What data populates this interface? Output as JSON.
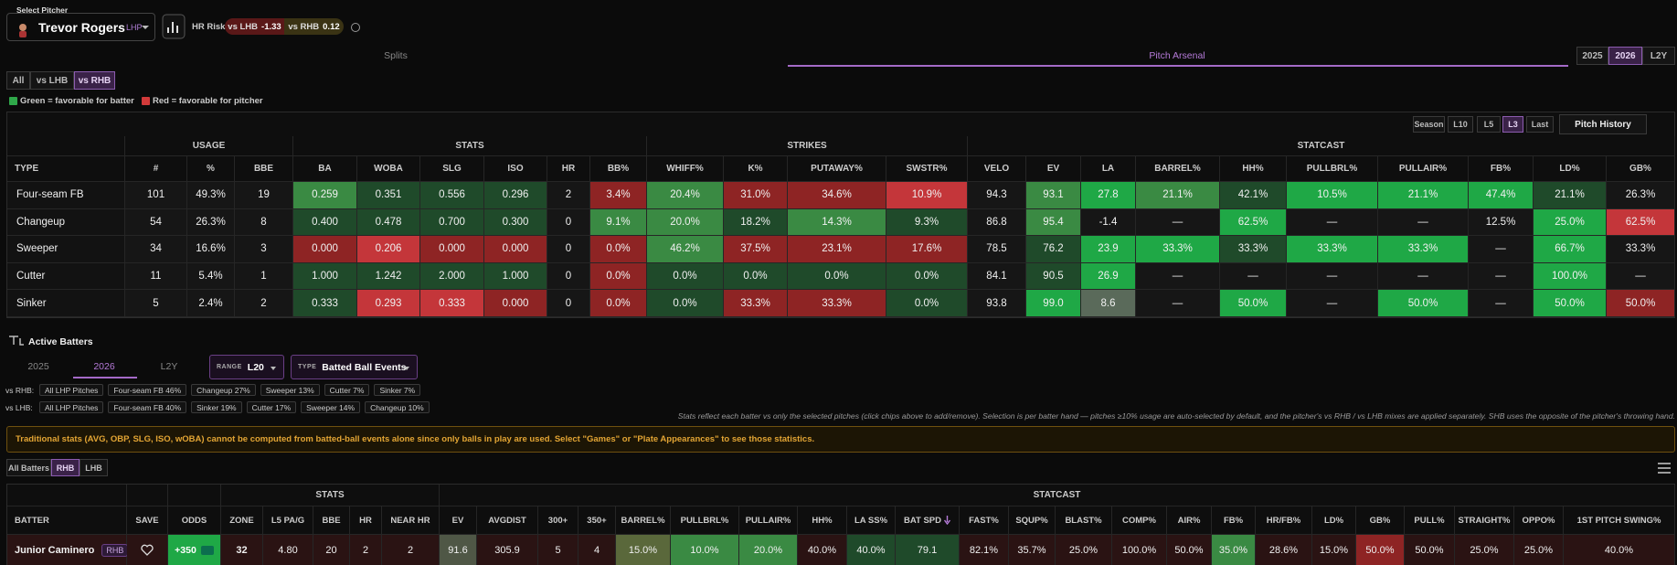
{
  "pitcher_select": {
    "label": "Select Pitcher",
    "name": "Trevor Rogers",
    "hand": "LHP"
  },
  "hr_risk": {
    "label": "HR Risk",
    "vs_lhb": "vs LHB",
    "vs_lhb_value": "-1.33",
    "vs_rhb": "vs RHB",
    "vs_rhb_value": "0.12"
  },
  "main_tabs": [
    "Splits",
    "Pitch Arsenal"
  ],
  "years": [
    "2025",
    "2026",
    "L2Y"
  ],
  "filters": [
    "All",
    "vs LHB",
    "vs RHB"
  ],
  "legend": [
    "Green = favorable for batter",
    "Red = favorable for pitcher"
  ],
  "arsenal": {
    "windows": [
      "Season",
      "L10",
      "L5",
      "L3",
      "Last"
    ],
    "history_button": "Pitch History",
    "groups": [
      "USAGE",
      "STATS",
      "STRIKES",
      "STATCAST"
    ],
    "columns": [
      "TYPE",
      "#",
      "%",
      "BBE",
      "BA",
      "WOBA",
      "SLG",
      "ISO",
      "HR",
      "BB%",
      "WHIFF%",
      "K%",
      "PUTAWAY%",
      "SWSTR%",
      "VELO",
      "EV",
      "LA",
      "BARREL%",
      "HH%",
      "PULLBRL%",
      "PULLAIR%",
      "FB%",
      "LD%",
      "GB%"
    ],
    "rows": [
      [
        "Four-seam FB",
        "101",
        "49.3%",
        "19",
        "0.259",
        "0.351",
        "0.556",
        "0.296",
        "2",
        "3.4%",
        "20.4%",
        "31.0%",
        "34.6%",
        "10.9%",
        "94.3",
        "93.1",
        "27.8",
        "21.1%",
        "42.1%",
        "10.5%",
        "21.1%",
        "47.4%",
        "21.1%",
        "26.3%"
      ],
      [
        "Changeup",
        "54",
        "26.3%",
        "8",
        "0.400",
        "0.478",
        "0.700",
        "0.300",
        "0",
        "9.1%",
        "20.0%",
        "18.2%",
        "14.3%",
        "9.3%",
        "86.8",
        "95.4",
        "-1.4",
        "—",
        "62.5%",
        "—",
        "—",
        "12.5%",
        "25.0%",
        "62.5%"
      ],
      [
        "Sweeper",
        "34",
        "16.6%",
        "3",
        "0.000",
        "0.206",
        "0.000",
        "0.000",
        "0",
        "0.0%",
        "46.2%",
        "37.5%",
        "23.1%",
        "17.6%",
        "78.5",
        "76.2",
        "23.9",
        "33.3%",
        "33.3%",
        "33.3%",
        "33.3%",
        "—",
        "66.7%",
        "33.3%"
      ],
      [
        "Cutter",
        "11",
        "5.4%",
        "1",
        "1.000",
        "1.242",
        "2.000",
        "1.000",
        "0",
        "0.0%",
        "0.0%",
        "0.0%",
        "0.0%",
        "0.0%",
        "84.1",
        "90.5",
        "26.9",
        "—",
        "—",
        "—",
        "—",
        "—",
        "100.0%",
        "—"
      ],
      [
        "Sinker",
        "5",
        "2.4%",
        "2",
        "0.333",
        "0.293",
        "0.333",
        "0.000",
        "0",
        "0.0%",
        "0.0%",
        "33.3%",
        "33.3%",
        "0.0%",
        "93.8",
        "99.0",
        "8.6",
        "—",
        "50.0%",
        "—",
        "50.0%",
        "—",
        "50.0%",
        "50.0%"
      ]
    ]
  },
  "active_batters": {
    "title": "Active Batters",
    "years": [
      "2025",
      "2026",
      "L2Y"
    ],
    "range_label": "RANGE",
    "range": "L20",
    "type_label": "TYPE",
    "type": "Batted Ball Events",
    "chips": [
      {
        "label": "vs RHB:",
        "items": [
          "All LHP Pitches",
          "Four-seam FB 46%",
          "Changeup 27%",
          "Sweeper 13%",
          "Cutter 7%",
          "Sinker 7%"
        ]
      },
      {
        "label": "vs LHB:",
        "items": [
          "All LHP Pitches",
          "Four-seam FB 40%",
          "Sinker 19%",
          "Cutter 17%",
          "Sweeper 14%",
          "Changeup 10%"
        ]
      }
    ],
    "note": "Stats reflect each batter vs only the selected pitches (click chips above to add/remove). Selection is per batter hand — pitches ≥10% usage are auto-selected by default, and the pitcher's vs RHB / vs LHB mixes are applied separately. SHB uses the opposite of the pitcher's throwing hand.",
    "warning": "Traditional stats (AVG, OBP, SLG, ISO, wOBA) cannot be computed from batted-ball events alone since only balls in play are used. Select \"Games\" or \"Plate Appearances\" to see those statistics.",
    "hands": [
      "All Batters",
      "RHB",
      "LHB"
    ]
  },
  "batters": {
    "groups": [
      "STATS",
      "STATCAST"
    ],
    "columns": [
      "BATTER",
      "SAVE",
      "ODDS",
      "ZONE",
      "L5 PA/G",
      "BBE",
      "HR",
      "NEAR HR",
      "EV",
      "AVGDIST",
      "300+",
      "350+",
      "BARREL%",
      "PULLBRL%",
      "PULLAIR%",
      "HH%",
      "LA SS%",
      "BAT SPD",
      "FAST%",
      "SQUP%",
      "BLAST%",
      "COMP%",
      "AIR%",
      "FB%",
      "HR/FB%",
      "LD%",
      "GB%",
      "PULL%",
      "STRAIGHT%",
      "OPPO%",
      "1ST PITCH SWING%"
    ],
    "rows": [
      {
        "name": "Junior Caminero",
        "hand": "RHB",
        "odds": "+350",
        "cells": [
          "32",
          "4.80",
          "20",
          "2",
          "2",
          "91.6",
          "305.9",
          "5",
          "4",
          "15.0%",
          "10.0%",
          "20.0%",
          "40.0%",
          "40.0%",
          "79.1",
          "82.1%",
          "35.7%",
          "25.0%",
          "100.0%",
          "50.0%",
          "35.0%",
          "28.6%",
          "15.0%",
          "50.0%",
          "50.0%",
          "25.0%",
          "25.0%",
          "40.0%"
        ]
      }
    ]
  }
}
